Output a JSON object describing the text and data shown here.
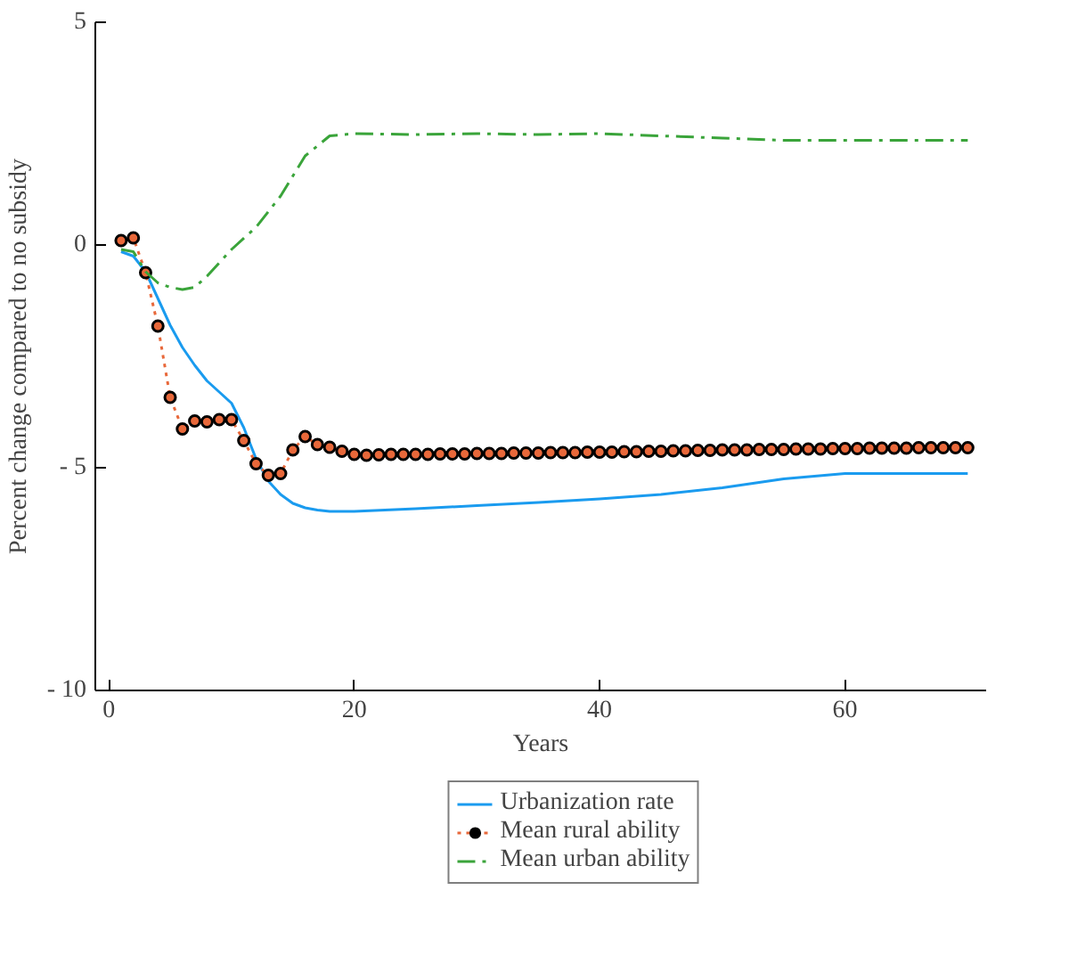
{
  "chart_data": {
    "type": "line",
    "xlabel": "Years",
    "ylabel": "Percent change compared to no subsidy",
    "xlim": [
      -1.1,
      71.5
    ],
    "ylim": [
      -10,
      5
    ],
    "xticks": [
      0,
      20,
      40,
      60
    ],
    "yticks": [
      5,
      0,
      {
        "value": -5,
        "label": "- 5"
      },
      {
        "value": -10,
        "label": "- 10"
      }
    ],
    "grid": false,
    "legend": "bottom",
    "series": [
      {
        "name": "Urbanization rate",
        "color": "#1a9bef",
        "line_style": "solid",
        "marker": "none",
        "x": [
          1,
          2,
          3,
          4,
          5,
          6,
          7,
          8,
          9,
          10,
          11,
          12,
          13,
          14,
          15,
          16,
          17,
          18,
          20,
          25,
          30,
          35,
          40,
          45,
          50,
          55,
          60,
          65,
          70
        ],
        "values": [
          -0.15,
          -0.25,
          -0.6,
          -1.2,
          -1.8,
          -2.3,
          -2.7,
          -3.05,
          -3.3,
          -3.55,
          -4.1,
          -4.8,
          -5.3,
          -5.6,
          -5.8,
          -5.9,
          -5.95,
          -5.98,
          -5.98,
          -5.92,
          -5.85,
          -5.78,
          -5.7,
          -5.6,
          -5.45,
          -5.25,
          -5.13,
          -5.13,
          -5.13
        ]
      },
      {
        "name": "Mean rural ability",
        "color": "#e8683a",
        "line_style": "dotted",
        "marker": "circle",
        "x": [
          1,
          2,
          3,
          4,
          5,
          6,
          7,
          8,
          9,
          10,
          11,
          12,
          13,
          14,
          15,
          16,
          17,
          18,
          19,
          20,
          21,
          22,
          23,
          24,
          25,
          26,
          27,
          28,
          29,
          30,
          31,
          32,
          33,
          34,
          35,
          36,
          37,
          38,
          39,
          40,
          41,
          42,
          43,
          44,
          45,
          46,
          47,
          48,
          49,
          50,
          51,
          52,
          53,
          54,
          55,
          56,
          57,
          58,
          59,
          60,
          61,
          62,
          63,
          64,
          65,
          66,
          67,
          68,
          69,
          70
        ],
        "values": [
          0.1,
          0.16,
          -0.62,
          -1.82,
          -3.42,
          -4.13,
          -3.95,
          -3.97,
          -3.92,
          -3.92,
          -4.39,
          -4.91,
          -5.17,
          -5.13,
          -4.6,
          -4.3,
          -4.48,
          -4.54,
          -4.63,
          -4.7,
          -4.72,
          -4.71,
          -4.7,
          -4.7,
          -4.7,
          -4.7,
          -4.69,
          -4.69,
          -4.69,
          -4.68,
          -4.68,
          -4.68,
          -4.67,
          -4.67,
          -4.67,
          -4.66,
          -4.66,
          -4.66,
          -4.65,
          -4.65,
          -4.65,
          -4.64,
          -4.64,
          -4.63,
          -4.63,
          -4.62,
          -4.62,
          -4.61,
          -4.61,
          -4.6,
          -4.6,
          -4.6,
          -4.59,
          -4.59,
          -4.59,
          -4.58,
          -4.58,
          -4.58,
          -4.57,
          -4.57,
          -4.57,
          -4.56,
          -4.56,
          -4.56,
          -4.56,
          -4.55,
          -4.55,
          -4.55,
          -4.55,
          -4.55
        ]
      },
      {
        "name": "Mean urban ability",
        "color": "#3aa43a",
        "line_style": "dashdot",
        "marker": "none",
        "x": [
          1,
          2,
          3,
          4,
          5,
          6,
          7,
          8,
          9,
          10,
          12,
          14,
          16,
          18,
          20,
          25,
          30,
          35,
          40,
          45,
          50,
          55,
          60,
          65,
          70
        ],
        "values": [
          -0.1,
          -0.15,
          -0.6,
          -0.85,
          -0.95,
          -1.0,
          -0.95,
          -0.7,
          -0.4,
          -0.1,
          0.4,
          1.1,
          2.0,
          2.45,
          2.5,
          2.48,
          2.5,
          2.48,
          2.5,
          2.45,
          2.4,
          2.35,
          2.35,
          2.35,
          2.35
        ]
      }
    ]
  }
}
